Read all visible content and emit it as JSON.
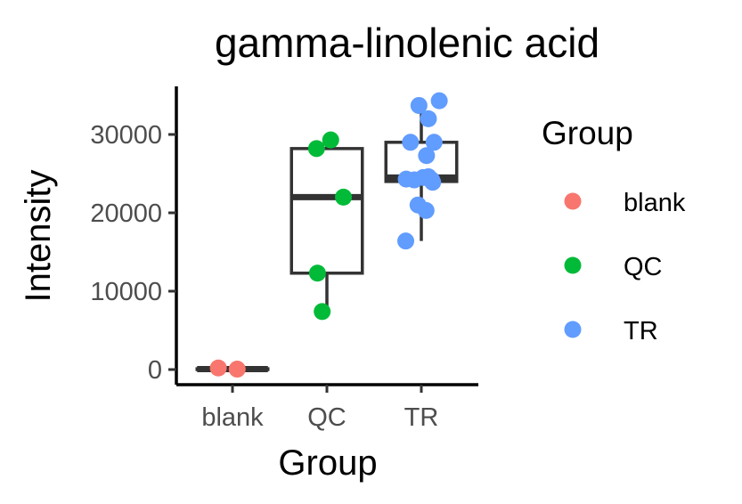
{
  "chart_data": {
    "type": "boxplot-with-jitter",
    "title": "gamma-linolenic acid",
    "xlabel": "Group",
    "ylabel": "Intensity",
    "categories": [
      "blank",
      "QC",
      "TR"
    ],
    "ylim": [
      -1500,
      36000
    ],
    "yticks": [
      0,
      10000,
      20000,
      30000
    ],
    "ytick_labels": [
      "0",
      "10000",
      "20000",
      "30000"
    ],
    "grid": false,
    "legend": {
      "title": "Group",
      "position": "right",
      "entries": [
        {
          "label": "blank",
          "color": "#F8766D"
        },
        {
          "label": "QC",
          "color": "#00BA38"
        },
        {
          "label": "TR",
          "color": "#619CFF"
        }
      ]
    },
    "boxes": [
      {
        "category": "blank",
        "min": 0,
        "q1": 0,
        "median": 50,
        "q3": 100,
        "max": 200
      },
      {
        "category": "QC",
        "min": 7400,
        "q1": 12300,
        "median": 22000,
        "q3": 28200,
        "max": 29300
      },
      {
        "category": "TR",
        "min": 16400,
        "q1": 24000,
        "median": 24500,
        "q3": 29000,
        "max": 34200
      }
    ],
    "points": [
      {
        "category": "blank",
        "jitter": -0.3,
        "y": 200
      },
      {
        "category": "blank",
        "jitter": 0.1,
        "y": 50
      },
      {
        "category": "QC",
        "jitter": -0.22,
        "y": 28200
      },
      {
        "category": "QC",
        "jitter": 0.08,
        "y": 29300
      },
      {
        "category": "QC",
        "jitter": 0.35,
        "y": 22000
      },
      {
        "category": "QC",
        "jitter": -0.2,
        "y": 12300
      },
      {
        "category": "QC",
        "jitter": -0.1,
        "y": 7400
      },
      {
        "category": "TR",
        "jitter": -0.05,
        "y": 33700
      },
      {
        "category": "TR",
        "jitter": 0.38,
        "y": 34300
      },
      {
        "category": "TR",
        "jitter": 0.15,
        "y": 32000
      },
      {
        "category": "TR",
        "jitter": -0.23,
        "y": 29000
      },
      {
        "category": "TR",
        "jitter": 0.27,
        "y": 29000
      },
      {
        "category": "TR",
        "jitter": 0.11,
        "y": 27300
      },
      {
        "category": "TR",
        "jitter": -0.32,
        "y": 24300
      },
      {
        "category": "TR",
        "jitter": -0.15,
        "y": 24200
      },
      {
        "category": "TR",
        "jitter": 0.04,
        "y": 24500
      },
      {
        "category": "TR",
        "jitter": 0.15,
        "y": 24600
      },
      {
        "category": "TR",
        "jitter": 0.22,
        "y": 24200
      },
      {
        "category": "TR",
        "jitter": 0.24,
        "y": 23900
      },
      {
        "category": "TR",
        "jitter": -0.07,
        "y": 21000
      },
      {
        "category": "TR",
        "jitter": 0.1,
        "y": 20300
      },
      {
        "category": "TR",
        "jitter": -0.33,
        "y": 16400
      }
    ]
  }
}
